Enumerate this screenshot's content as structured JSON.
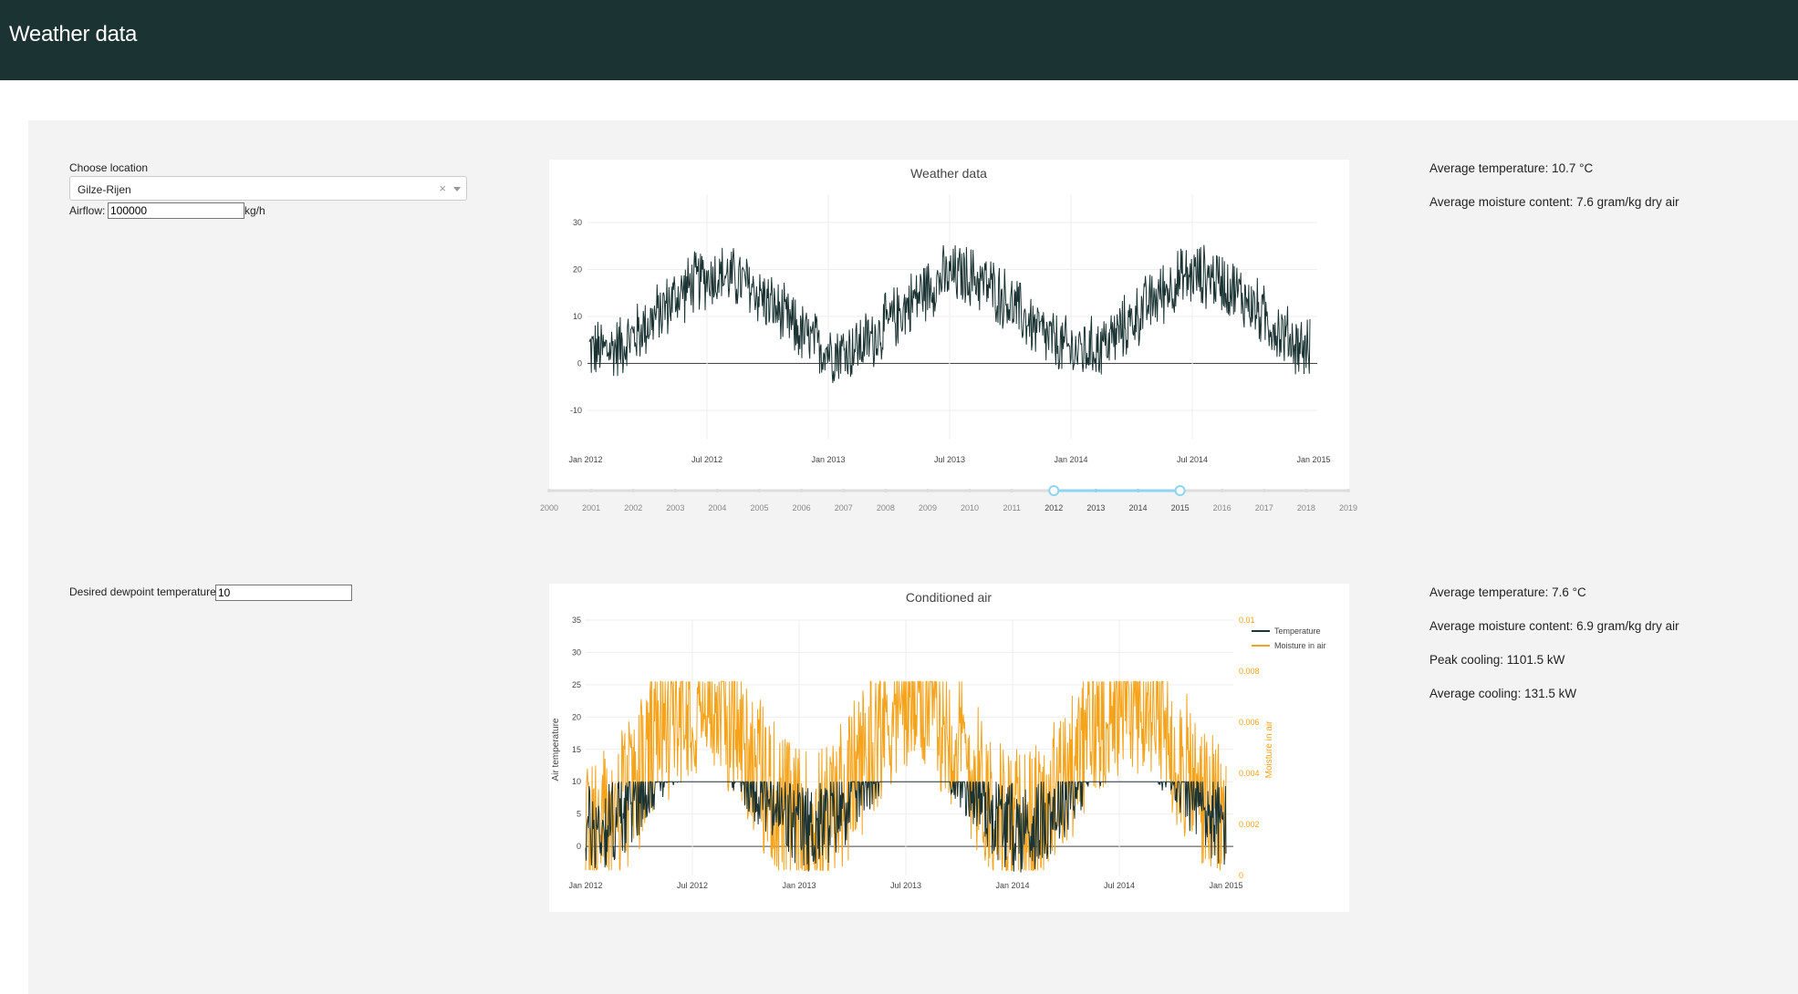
{
  "header": {
    "title": "Weather data"
  },
  "controls": {
    "location_label": "Choose location",
    "location_value": "Gilze-Rijen",
    "airflow_label": "Airflow:",
    "airflow_value": "100000",
    "airflow_unit": "kg/h",
    "dewpoint_label": "Desired dewpoint temperature",
    "dewpoint_value": "10"
  },
  "stats_weather": {
    "avg_temp": "Average temperature: 10.7 °C",
    "avg_moist": "Average moisture content: 7.6 gram/kg dry air"
  },
  "stats_conditioned": {
    "avg_temp": "Average temperature: 7.6 °C",
    "avg_moist": "Average moisture content: 6.9 gram/kg dry air",
    "peak_cooling": "Peak cooling: 1101.5 kW",
    "avg_cooling": "Average cooling: 131.5 kW"
  },
  "chart_data": [
    {
      "type": "line",
      "title": "Weather data",
      "x_ticks": [
        "Jan 2012",
        "Jul 2012",
        "Jan 2013",
        "Jul 2013",
        "Jan 2014",
        "Jul 2014",
        "Jan 2015"
      ],
      "y_ticks": [
        -10,
        0,
        10,
        20,
        30
      ],
      "ylim": [
        -16,
        36
      ],
      "xlim": [
        "2012-01-01",
        "2015-01-01"
      ],
      "series": [
        {
          "color": "#1b3433",
          "approx_seasonal": {
            "mean": 10.7,
            "amplitude": 8,
            "noise": 6
          }
        }
      ],
      "range_slider": {
        "years": [
          "2000",
          "2001",
          "2002",
          "2003",
          "2004",
          "2005",
          "2006",
          "2007",
          "2008",
          "2009",
          "2010",
          "2011",
          "2012",
          "2013",
          "2014",
          "2015",
          "2016",
          "2017",
          "2018",
          "2019"
        ],
        "selected": [
          "2012",
          "2015"
        ]
      },
      "grid": true
    },
    {
      "type": "line",
      "title": "Conditioned air",
      "ylabel": "Air temperature",
      "y2label": "Moisture in air",
      "x_ticks": [
        "Jan 2012",
        "Jul 2012",
        "Jan 2013",
        "Jul 2013",
        "Jan 2014",
        "Jul 2014",
        "Jan 2015"
      ],
      "y_ticks": [
        0,
        5,
        10,
        15,
        20,
        25,
        30,
        35
      ],
      "y2_ticks": [
        "0",
        "0.002",
        "0.004",
        "0.006",
        "0.008",
        "0.01"
      ],
      "ylim": [
        -4.5,
        35
      ],
      "y2lim": [
        0,
        0.01
      ],
      "legend": "top-right",
      "series": [
        {
          "name": "Temperature",
          "color": "#1b3433",
          "cap": 10
        },
        {
          "name": "Moisture in air",
          "color": "#f5a31b",
          "cap": 0.0076
        }
      ],
      "grid": true
    }
  ]
}
